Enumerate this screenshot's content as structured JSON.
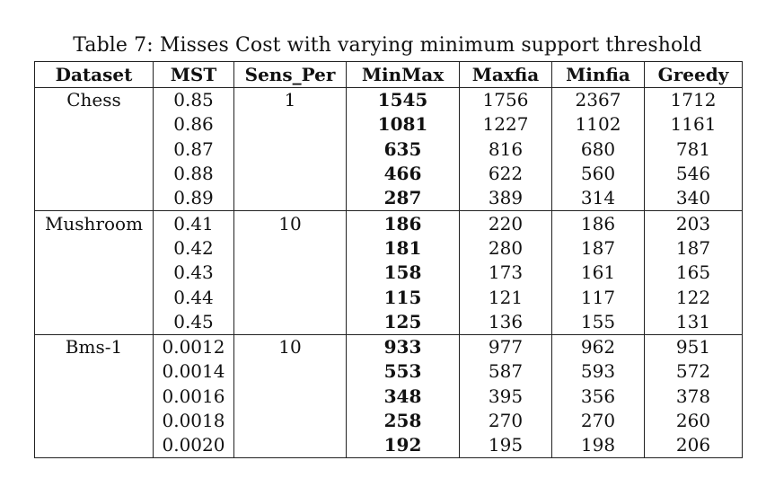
{
  "caption": "Table 7: Misses Cost with varying minimum support threshold",
  "columns": [
    "Dataset",
    "MST",
    "Sens_Per",
    "MinMax",
    "Maxfia",
    "Minfia",
    "Greedy"
  ],
  "groups": [
    {
      "dataset": "Chess",
      "sens_per": "1",
      "rows": [
        {
          "mst": "0.85",
          "minmax": "1545",
          "maxfia": "1756",
          "minfia": "2367",
          "greedy": "1712"
        },
        {
          "mst": "0.86",
          "minmax": "1081",
          "maxfia": "1227",
          "minfia": "1102",
          "greedy": "1161"
        },
        {
          "mst": "0.87",
          "minmax": "635",
          "maxfia": "816",
          "minfia": "680",
          "greedy": "781"
        },
        {
          "mst": "0.88",
          "minmax": "466",
          "maxfia": "622",
          "minfia": "560",
          "greedy": "546"
        },
        {
          "mst": "0.89",
          "minmax": "287",
          "maxfia": "389",
          "minfia": "314",
          "greedy": "340"
        }
      ]
    },
    {
      "dataset": "Mushroom",
      "sens_per": "10",
      "rows": [
        {
          "mst": "0.41",
          "minmax": "186",
          "maxfia": "220",
          "minfia": "186",
          "greedy": "203"
        },
        {
          "mst": "0.42",
          "minmax": "181",
          "maxfia": "280",
          "minfia": "187",
          "greedy": "187"
        },
        {
          "mst": "0.43",
          "minmax": "158",
          "maxfia": "173",
          "minfia": "161",
          "greedy": "165"
        },
        {
          "mst": "0.44",
          "minmax": "115",
          "maxfia": "121",
          "minfia": "117",
          "greedy": "122"
        },
        {
          "mst": "0.45",
          "minmax": "125",
          "maxfia": "136",
          "minfia": "155",
          "greedy": "131"
        }
      ]
    },
    {
      "dataset": "Bms-1",
      "sens_per": "10",
      "rows": [
        {
          "mst": "0.0012",
          "minmax": "933",
          "maxfia": "977",
          "minfia": "962",
          "greedy": "951"
        },
        {
          "mst": "0.0014",
          "minmax": "553",
          "maxfia": "587",
          "minfia": "593",
          "greedy": "572"
        },
        {
          "mst": "0.0016",
          "minmax": "348",
          "maxfia": "395",
          "minfia": "356",
          "greedy": "378"
        },
        {
          "mst": "0.0018",
          "minmax": "258",
          "maxfia": "270",
          "minfia": "270",
          "greedy": "260"
        },
        {
          "mst": "0.0020",
          "minmax": "192",
          "maxfia": "195",
          "minfia": "198",
          "greedy": "206"
        }
      ]
    }
  ]
}
